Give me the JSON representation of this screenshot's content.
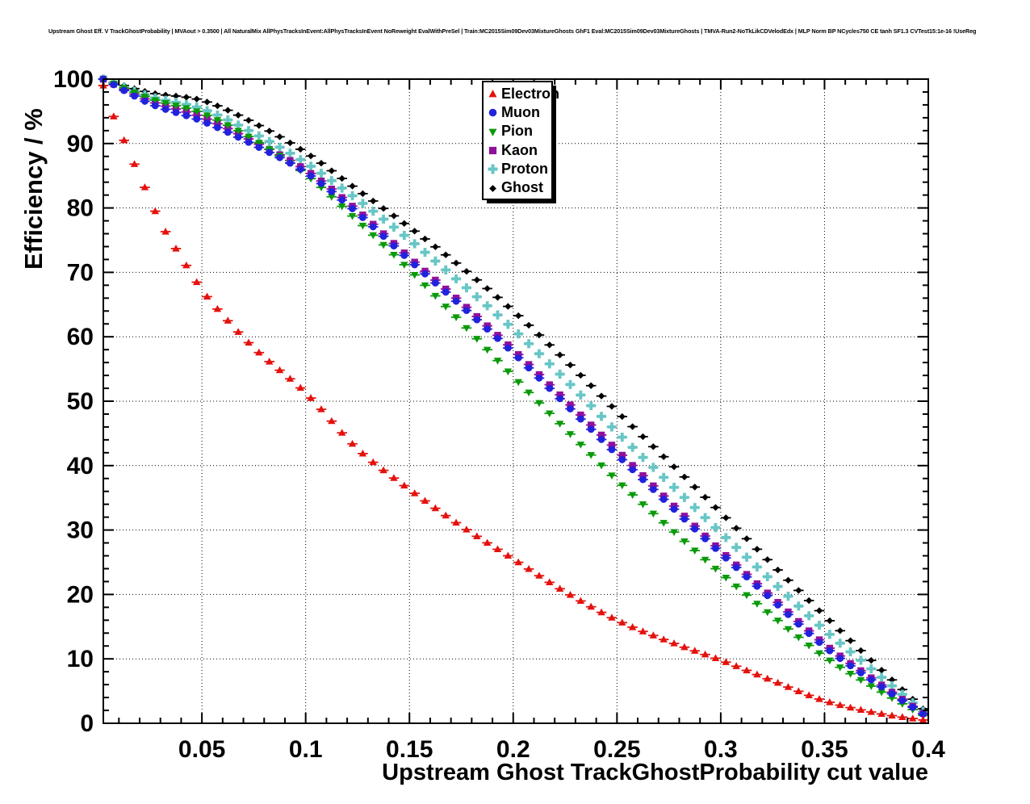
{
  "page_title": "Upstream Ghost Eff. V TrackGhostProbability | MVAout > 0.3500 | All NaturalMix AllPhysTracksInEvent:AllPhysTracksInEvent NoReweight EvalWithPreSel | Train:MC2015Sim09Dev03MixtureGhosts GhF1 Eval:MC2015Sim09Dev03MixtureGhosts | TMVA-Run2-NoTkLikCDVelodEdx | MLP Norm BP NCycles750 CE tanh SF1.3 CVTest15:1e-16 !UseReg",
  "axes": {
    "x": {
      "label": "Upstream Ghost TrackGhostProbability cut value",
      "min": 0.0025,
      "max": 0.4,
      "major_ticks": [
        0.05,
        0.1,
        0.15,
        0.2,
        0.25,
        0.3,
        0.35,
        0.4
      ],
      "tick_labels": [
        "0.05",
        "0.1",
        "0.15",
        "0.2",
        "0.25",
        "0.3",
        "0.35",
        "0.4"
      ],
      "minor_step": 0.01
    },
    "y": {
      "label": "Efficiency / %",
      "min": 0,
      "max": 100,
      "major_ticks": [
        0,
        10,
        20,
        30,
        40,
        50,
        60,
        70,
        80,
        90,
        100
      ],
      "tick_labels": [
        "0",
        "10",
        "20",
        "30",
        "40",
        "50",
        "60",
        "70",
        "80",
        "90",
        "100"
      ],
      "minor_step": 2
    }
  },
  "legend": {
    "items": [
      {
        "label": "Electron",
        "marker": "triangle-up",
        "color": "#e4120e"
      },
      {
        "label": "Muon",
        "marker": "circle",
        "color": "#2222dd"
      },
      {
        "label": "Pion",
        "marker": "triangle-down",
        "color": "#0a9a0a"
      },
      {
        "label": "Kaon",
        "marker": "square",
        "color": "#90109c"
      },
      {
        "label": "Proton",
        "marker": "plus",
        "color": "#68c6c6"
      },
      {
        "label": "Ghost",
        "marker": "diamond",
        "color": "#000000"
      }
    ]
  },
  "chart_data": {
    "type": "scatter",
    "title": "Upstream Ghost Eff. V TrackGhostProbability | MVAout > 0.3500 | All NaturalMix AllPhysTracksInEvent:AllPhysTracksInEvent NoReweight EvalWithPreSel | Train:MC2015Sim09Dev03MixtureGhosts GhF1 Eval:MC2015Sim09Dev03MixtureGhosts | TMVA-Run2-NoTkLikCDVelodEdx | MLP Norm BP NCycles750 CE tanh SF1.3 CVTest15:1e-16 !UseReg",
    "xlabel": "Upstream Ghost TrackGhostProbability cut value",
    "ylabel": "Efficiency / %",
    "xlim": [
      0.0025,
      0.4
    ],
    "ylim": [
      0,
      100
    ],
    "grid": true,
    "legend_position": "top-center",
    "marker_step": 0.005,
    "note": "ROOT-style efficiency curves; x/y arrays are anchor points read from the plot, markers are drawn every 0.005 with x-error bars of +/-0.0025",
    "series": [
      {
        "name": "Electron",
        "marker": "triangle-up",
        "color": "#e4120e",
        "x": [
          0.0025,
          0.0075,
          0.0125,
          0.0175,
          0.0225,
          0.03,
          0.04,
          0.05,
          0.06,
          0.075,
          0.1,
          0.125,
          0.15,
          0.175,
          0.2,
          0.225,
          0.25,
          0.275,
          0.3,
          0.325,
          0.35,
          0.375,
          0.4
        ],
        "y": [
          99.0,
          94.2,
          90.5,
          86.8,
          83.2,
          77.8,
          72.4,
          67.3,
          63.4,
          58.3,
          51.3,
          42.6,
          36.3,
          30.6,
          25.5,
          20.4,
          16.0,
          12.7,
          9.8,
          6.6,
          3.5,
          1.6,
          0.4
        ]
      },
      {
        "name": "Muon",
        "marker": "circle",
        "color": "#2222dd",
        "x": [
          0.0025,
          0.025,
          0.05,
          0.075,
          0.1,
          0.125,
          0.15,
          0.175,
          0.2,
          0.225,
          0.25,
          0.275,
          0.3,
          0.325,
          0.35,
          0.375,
          0.4
        ],
        "y": [
          100,
          96.2,
          93.5,
          89.8,
          85.5,
          79.2,
          71.9,
          64.8,
          57.5,
          49.6,
          41.7,
          34.0,
          26.4,
          19.1,
          11.9,
          6.2,
          0.9
        ]
      },
      {
        "name": "Pion",
        "marker": "triangle-down",
        "color": "#0a9a0a",
        "x": [
          0.0025,
          0.025,
          0.05,
          0.075,
          0.1,
          0.125,
          0.15,
          0.175,
          0.2,
          0.225,
          0.25,
          0.275,
          0.3,
          0.325,
          0.35,
          0.375,
          0.4
        ],
        "y": [
          100,
          97.0,
          94.7,
          90.6,
          85.2,
          78.0,
          70.4,
          62.2,
          53.8,
          45.7,
          37.7,
          30.4,
          23.3,
          16.6,
          10.3,
          5.3,
          0.8
        ]
      },
      {
        "name": "Kaon",
        "marker": "square",
        "color": "#90109c",
        "x": [
          0.0025,
          0.025,
          0.05,
          0.075,
          0.1,
          0.125,
          0.15,
          0.175,
          0.2,
          0.225,
          0.25,
          0.275,
          0.3,
          0.325,
          0.35,
          0.375,
          0.4
        ],
        "y": [
          100,
          96.6,
          94.1,
          90.3,
          85.9,
          79.6,
          72.3,
          65.3,
          58.0,
          50.2,
          42.4,
          34.5,
          26.8,
          19.5,
          12.3,
          6.5,
          1.0
        ]
      },
      {
        "name": "Proton",
        "marker": "plus",
        "color": "#68c6c6",
        "x": [
          0.0025,
          0.025,
          0.05,
          0.075,
          0.1,
          0.125,
          0.15,
          0.175,
          0.2,
          0.225,
          0.25,
          0.275,
          0.3,
          0.325,
          0.35,
          0.375,
          0.4
        ],
        "y": [
          100,
          97.3,
          95.4,
          91.6,
          87.0,
          81.3,
          75.1,
          68.3,
          61.2,
          53.4,
          45.2,
          37.4,
          29.6,
          22.0,
          14.5,
          7.8,
          1.2
        ]
      },
      {
        "name": "Ghost",
        "marker": "diamond",
        "color": "#000000",
        "x": [
          0.0025,
          0.025,
          0.05,
          0.075,
          0.1,
          0.125,
          0.15,
          0.175,
          0.2,
          0.225,
          0.25,
          0.275,
          0.3,
          0.325,
          0.35,
          0.375,
          0.4
        ],
        "y": [
          100,
          97.9,
          96.7,
          93.2,
          88.6,
          82.8,
          77.0,
          70.8,
          64.0,
          56.4,
          48.4,
          40.6,
          32.7,
          24.6,
          16.7,
          9.0,
          1.5
        ]
      }
    ]
  }
}
